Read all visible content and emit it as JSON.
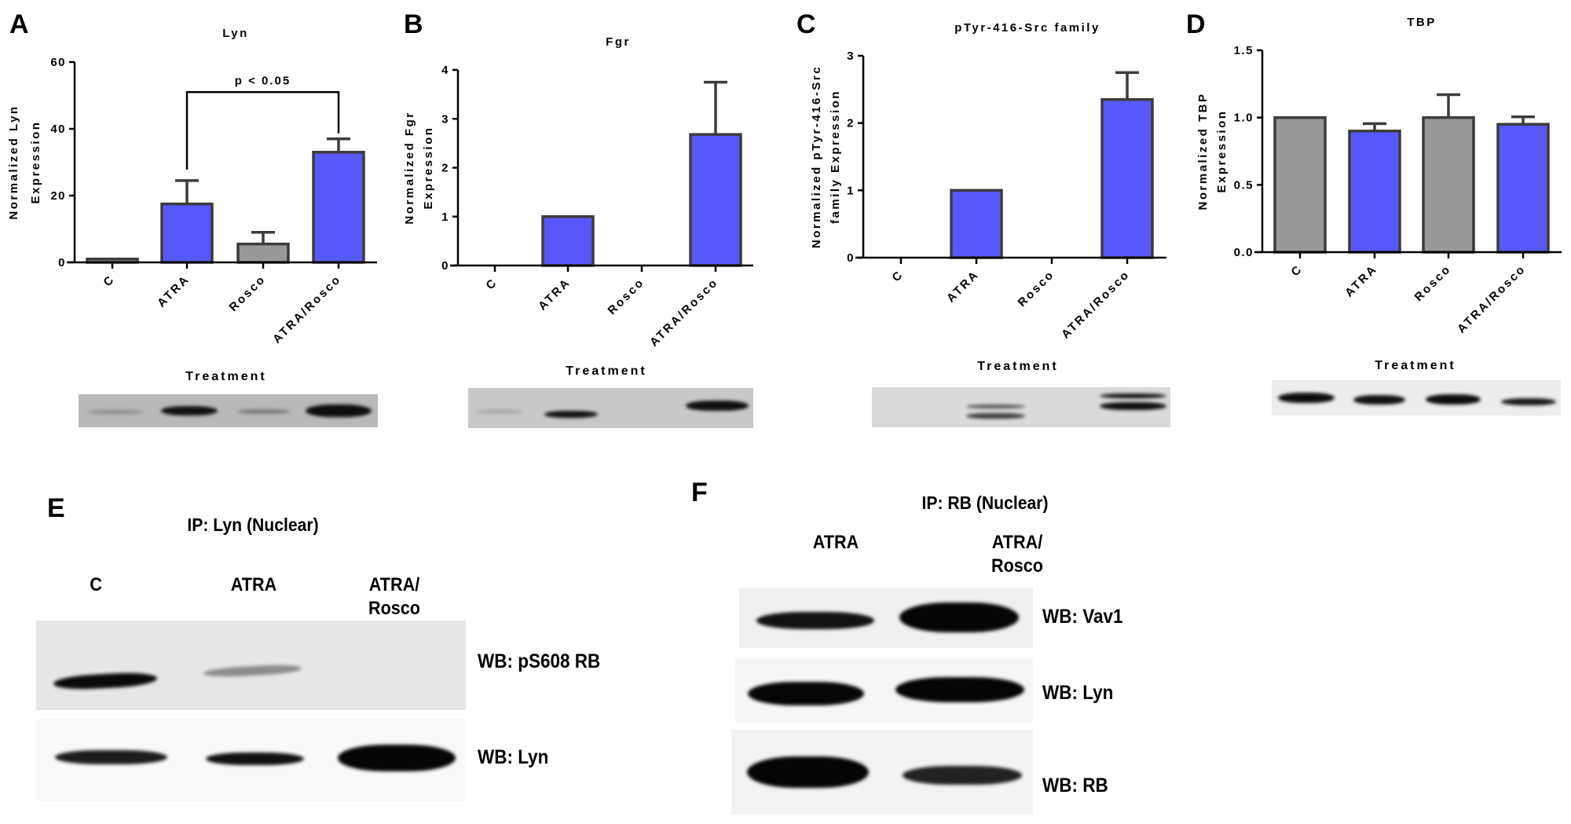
{
  "colors": {
    "treated_bar": "#5858fa",
    "control_bar": "#999999",
    "bar_outline": "#3c3c3c",
    "axis": "#000000"
  },
  "panels": {
    "A": {
      "letter": "A"
    },
    "B": {
      "letter": "B"
    },
    "C": {
      "letter": "C"
    },
    "D": {
      "letter": "D"
    },
    "E": {
      "letter": "E",
      "title": "IP: Lyn (Nuclear)",
      "lanes": [
        "C",
        "ATRA",
        "ATRA/\nRosco"
      ],
      "blots": [
        {
          "label": "WB: pS608 RB"
        },
        {
          "label": "WB: Lyn"
        }
      ]
    },
    "F": {
      "letter": "F",
      "title": "IP: RB (Nuclear)",
      "lanes": [
        "ATRA",
        "ATRA/\nRosco"
      ],
      "blots": [
        {
          "label": "WB: Vav1"
        },
        {
          "label": "WB: Lyn"
        },
        {
          "label": "WB: RB"
        }
      ]
    }
  },
  "chart_data": [
    {
      "panel": "A",
      "type": "bar",
      "title": "Lyn",
      "xlabel": "Treatment",
      "ylabel": "Normalized Lyn Expression",
      "ylabel_lines": [
        "Normalized Lyn",
        "Expression"
      ],
      "categories": [
        "C",
        "ATRA",
        "Rosco",
        "ATRA/Rosco"
      ],
      "values": [
        1.0,
        17.5,
        5.5,
        33.0
      ],
      "error_upper": [
        1.0,
        24.5,
        9.0,
        37.0
      ],
      "bar_colors": [
        "#999999",
        "#5858fa",
        "#999999",
        "#5858fa"
      ],
      "ylim": [
        0,
        60
      ],
      "yticks": [
        "0",
        "20",
        "40",
        "60"
      ],
      "yticks_values": [
        0,
        20,
        40,
        60
      ],
      "annotations": [
        {
          "text": "p < 0.05",
          "from": "ATRA",
          "to": "ATRA/Rosco",
          "bracket_y": 51
        }
      ],
      "grid": false
    },
    {
      "panel": "B",
      "type": "bar",
      "title": "Fgr",
      "xlabel": "Treatment",
      "ylabel": "Normalized Fgr Expression",
      "ylabel_lines": [
        "Normalized Fgr",
        "Expression"
      ],
      "categories": [
        "C",
        "ATRA",
        "Rosco",
        "ATRA/Rosco"
      ],
      "values": [
        0,
        1.0,
        0,
        2.68
      ],
      "error_upper": [
        0,
        1.0,
        0,
        3.75
      ],
      "bar_colors": [
        "#999999",
        "#5858fa",
        "#999999",
        "#5858fa"
      ],
      "ylim": [
        0,
        4
      ],
      "yticks": [
        "0",
        "1",
        "2",
        "3",
        "4"
      ],
      "yticks_values": [
        0,
        1,
        2,
        3,
        4
      ],
      "grid": false
    },
    {
      "panel": "C",
      "type": "bar",
      "title": "pTyr-416-Src family",
      "xlabel": "Treatment",
      "ylabel": "Normalized pTyr-416-Src family Expression",
      "ylabel_lines": [
        "Normalized pTyr-416-Src",
        "family Expression"
      ],
      "categories": [
        "C",
        "ATRA",
        "Rosco",
        "ATRA/Rosco"
      ],
      "values": [
        0,
        1.0,
        0,
        2.35
      ],
      "error_upper": [
        0,
        1.0,
        0,
        2.75
      ],
      "bar_colors": [
        "#999999",
        "#5858fa",
        "#999999",
        "#5858fa"
      ],
      "ylim": [
        0,
        3
      ],
      "yticks": [
        "0",
        "1",
        "2",
        "3"
      ],
      "yticks_values": [
        0,
        1,
        2,
        3
      ],
      "grid": false
    },
    {
      "panel": "D",
      "type": "bar",
      "title": "TBP",
      "xlabel": "Treatment",
      "ylabel": "Normalized TBP Expression",
      "ylabel_lines": [
        "Normalized TBP",
        "Expression"
      ],
      "categories": [
        "C",
        "ATRA",
        "Rosco",
        "ATRA/Rosco"
      ],
      "values": [
        1.0,
        0.9,
        1.0,
        0.95
      ],
      "error_upper": [
        1.0,
        0.955,
        1.17,
        1.005
      ],
      "bar_colors": [
        "#999999",
        "#5858fa",
        "#999999",
        "#5858fa"
      ],
      "ylim": [
        0,
        1.5
      ],
      "yticks": [
        "0.0",
        "0.5",
        "1.0",
        "1.5"
      ],
      "yticks_values": [
        0,
        0.5,
        1.0,
        1.5
      ],
      "grid": false
    }
  ]
}
